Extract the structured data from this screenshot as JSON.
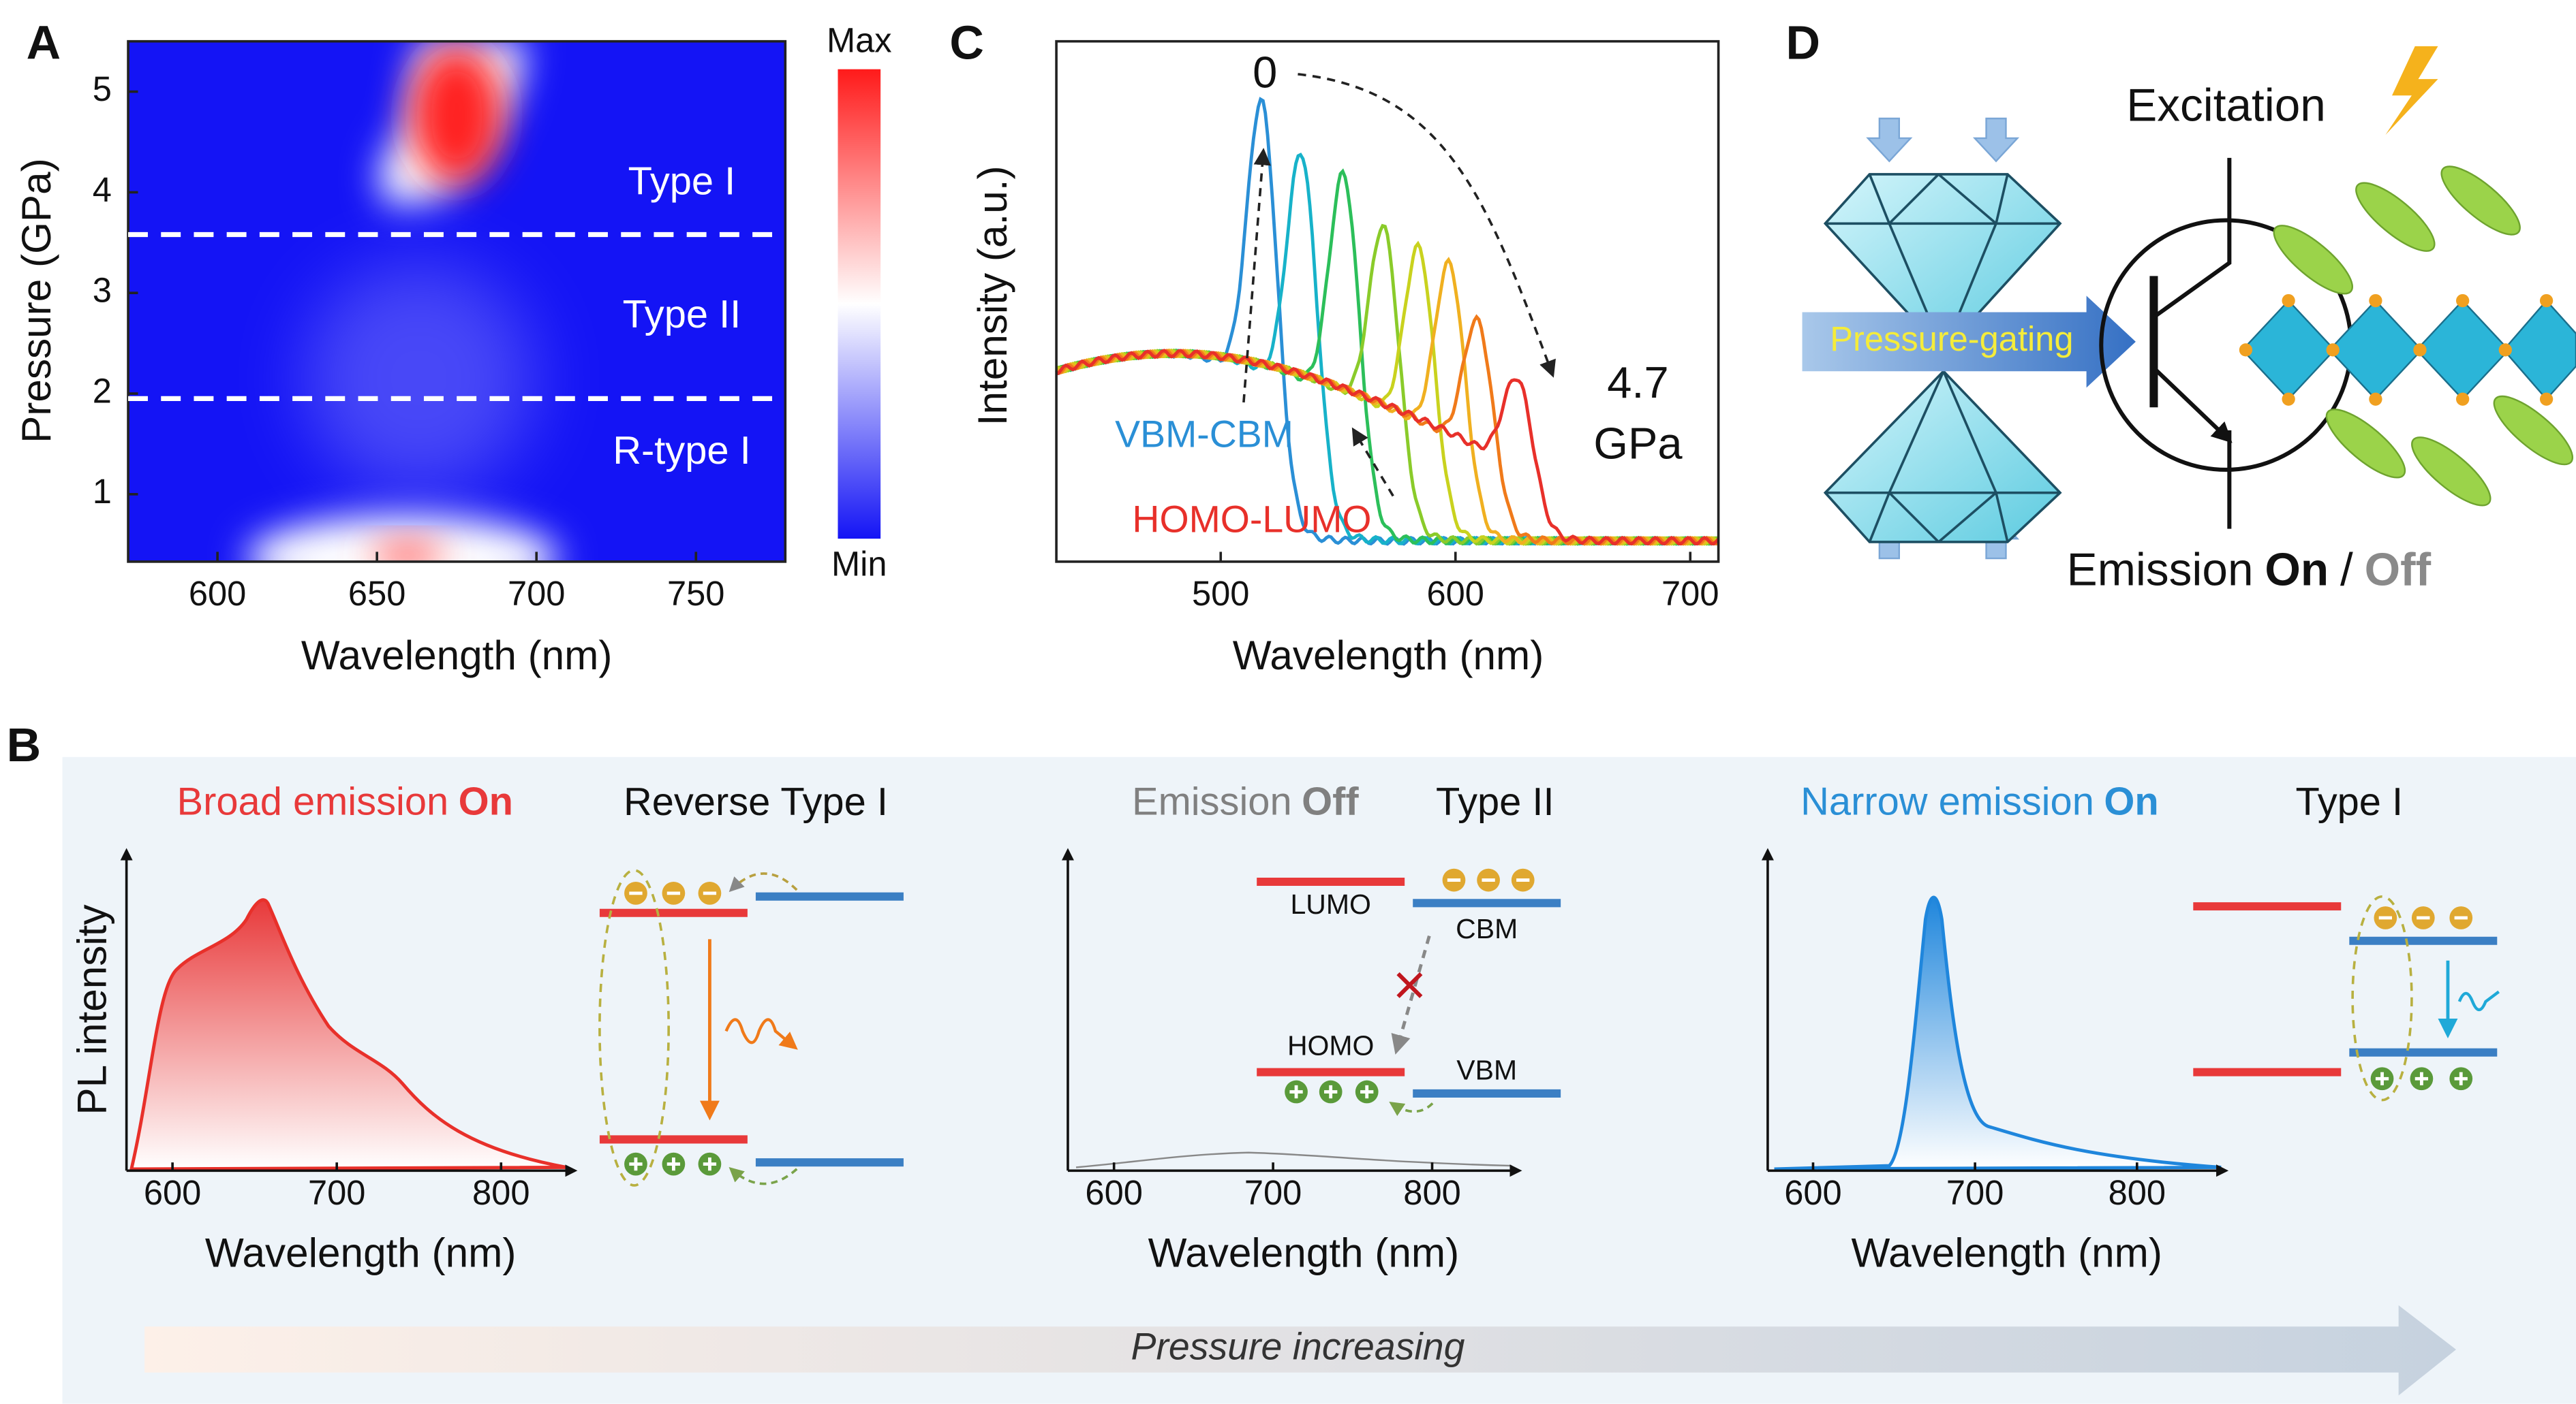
{
  "panel_a": {
    "label": "A",
    "xlabel": "Wavelength (nm)",
    "ylabel": "Pressure (GPa)",
    "xlim": [
      572,
      778
    ],
    "xticks": [
      600,
      650,
      700,
      750
    ],
    "ylim": [
      0.33,
      5.5
    ],
    "yticks": [
      1,
      2,
      3,
      4,
      5
    ],
    "boundaries": [
      3.58,
      1.95
    ],
    "regions": [
      "Type I",
      "Type II",
      "R-type I"
    ],
    "colorbar": [
      "Max",
      "Min"
    ]
  },
  "panel_b": {
    "label": "B",
    "plots": [
      {
        "title": [
          "Broad emission",
          "On"
        ],
        "band": "Reverse Type I",
        "xlim": [
          572,
          845
        ],
        "xticks": [
          600,
          700,
          800
        ],
        "xlabel": "Wavelength (nm)",
        "ylabel": "PL intensity"
      },
      {
        "title": [
          "Emission",
          "Off"
        ],
        "band": "Type II",
        "levels": [
          "LUMO",
          "CBM",
          "HOMO",
          "VBM"
        ],
        "xlim": [
          571,
          855
        ],
        "xticks": [
          600,
          700,
          800
        ],
        "xlabel": "Wavelength (nm)"
      },
      {
        "title": [
          "Narrow emission",
          "On"
        ],
        "band": "Type I",
        "xlim": [
          572,
          855
        ],
        "xticks": [
          600,
          700,
          800
        ],
        "xlabel": "Wavelength (nm)"
      }
    ],
    "arrow": "Pressure increasing"
  },
  "panel_c": {
    "label": "C",
    "xlabel": "Wavelength (nm)",
    "ylabel": "Intensity (a.u.)",
    "xlim": [
      430,
      712
    ],
    "xticks": [
      500,
      600,
      700
    ],
    "ylim": [
      0,
      100
    ],
    "start_label": "0",
    "end_label": [
      "4.7",
      "GPa"
    ],
    "annotations": [
      "VBM-CBM",
      "HOMO-LUMO"
    ],
    "peaks": [
      {
        "x": 518,
        "height": 88,
        "color": "#2a8fd6"
      },
      {
        "x": 535,
        "height": 78,
        "color": "#17b2c9"
      },
      {
        "x": 553,
        "height": 74,
        "color": "#2cbf5a"
      },
      {
        "x": 570,
        "height": 64,
        "color": "#8acb2a"
      },
      {
        "x": 585,
        "height": 60,
        "color": "#c9d21e"
      },
      {
        "x": 598,
        "height": 57,
        "color": "#f0b020"
      },
      {
        "x": 610,
        "height": 46,
        "color": "#f07a1a"
      },
      {
        "x": 627,
        "height": 35,
        "color": "#e8302a"
      }
    ]
  },
  "panel_d": {
    "label": "D",
    "excitation": "Excitation",
    "gate": "Pressure-gating",
    "emission": [
      "Emission",
      "On",
      "/",
      "Off"
    ]
  }
}
